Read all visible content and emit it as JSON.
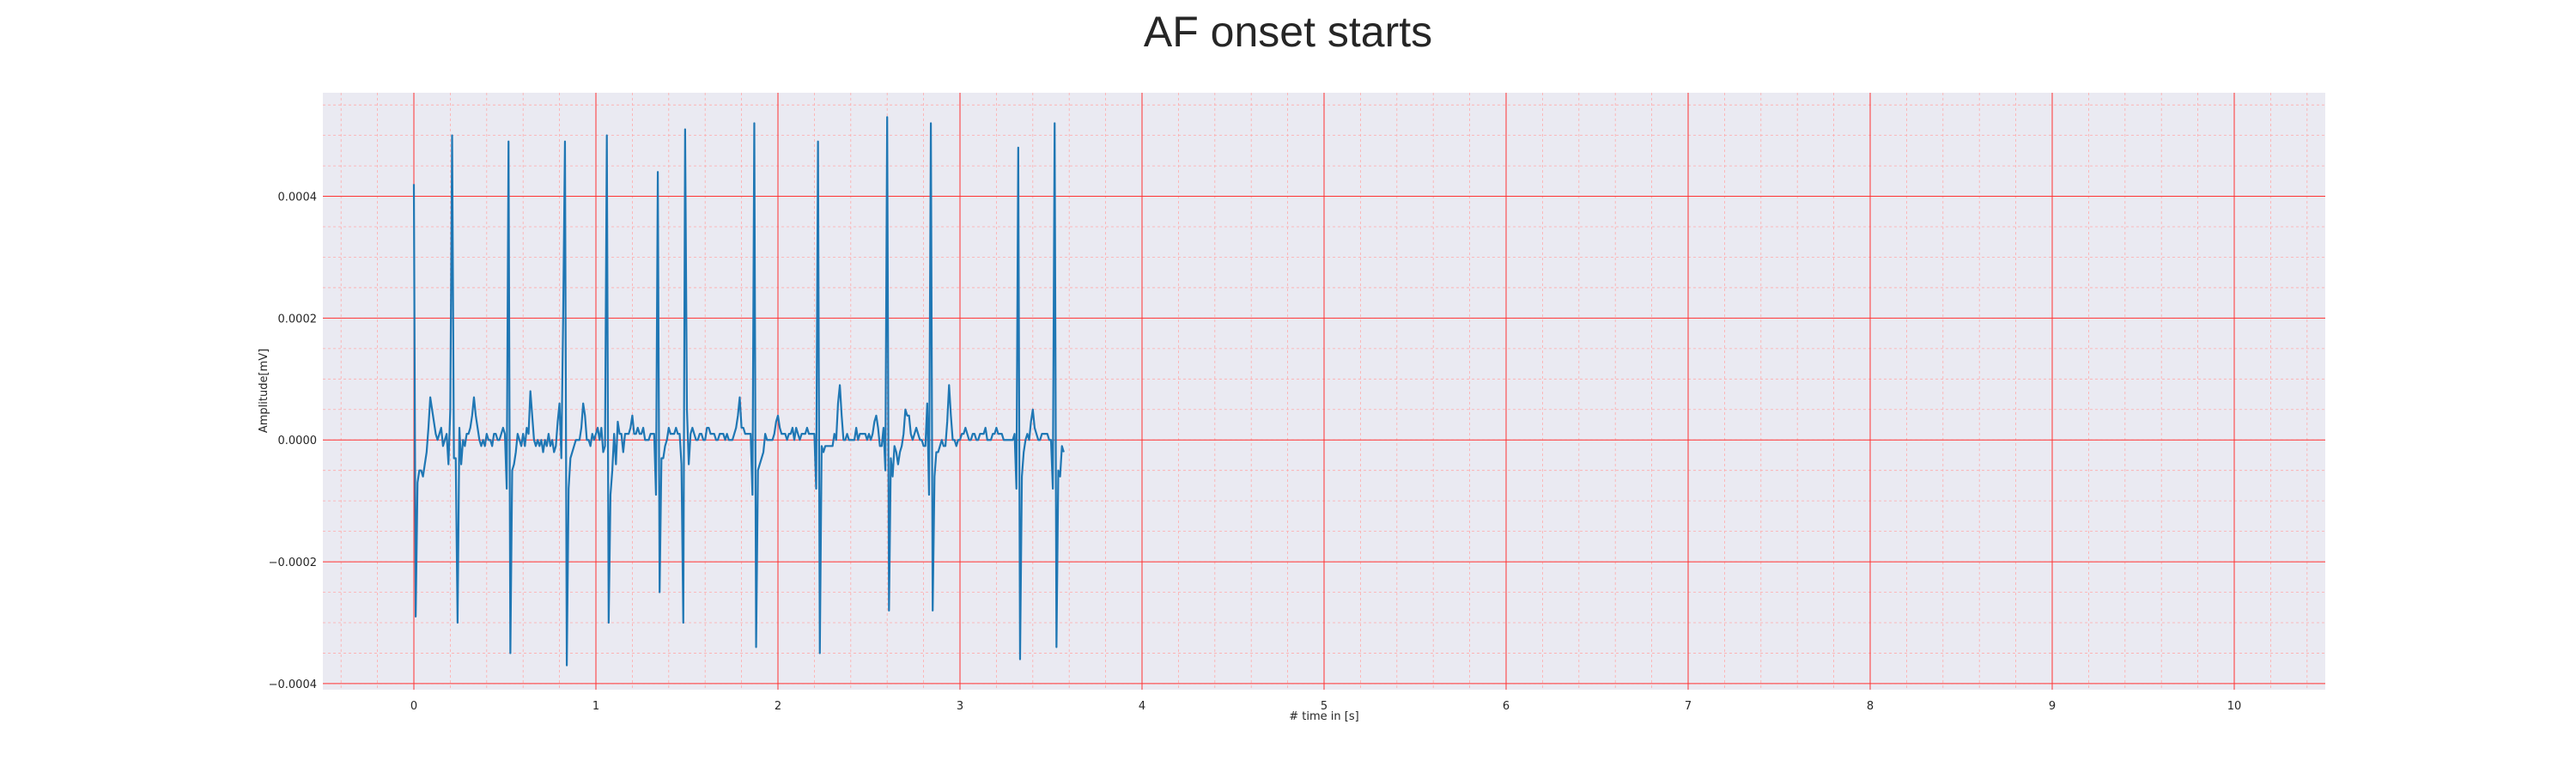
{
  "chart_data": {
    "type": "line",
    "title": "AF onset starts",
    "xlabel": "# time in [s]",
    "ylabel": "Amplitude[mV]",
    "xlim": [
      -0.5,
      10.5
    ],
    "ylim": [
      -0.00041,
      0.00057
    ],
    "x_ticks": [
      0,
      1,
      2,
      3,
      4,
      5,
      6,
      7,
      8,
      9,
      10
    ],
    "x_tick_labels": [
      "0",
      "1",
      "2",
      "3",
      "4",
      "5",
      "6",
      "7",
      "8",
      "9",
      "10"
    ],
    "y_ticks": [
      -0.0004,
      -0.0002,
      0.0,
      0.0002,
      0.0004
    ],
    "y_tick_labels": [
      "−0.0004",
      "−0.0002",
      "0.0000",
      "0.0002",
      "0.0004"
    ],
    "grid": "major and minor",
    "colors": {
      "line": "#1f77b4",
      "plot_background": "#eaeaf2",
      "major_grid": "#ff3333",
      "minor_grid": "#ffaaaa",
      "text": "#262626"
    },
    "series": [
      {
        "sampling_rate_hz": 100,
        "values": [
          0.00042,
          -0.00029,
          -7e-05,
          -5e-05,
          -5e-05,
          -6e-05,
          -4e-05,
          -2e-05,
          2e-05,
          7e-05,
          5e-05,
          3e-05,
          1e-05,
          0,
          1e-05,
          2e-05,
          -1e-05,
          0,
          1e-05,
          -4e-05,
          5e-05,
          0.0005,
          -3e-05,
          -3e-05,
          -0.0003,
          2e-05,
          -4e-05,
          0,
          -1e-05,
          1e-05,
          1e-05,
          2e-05,
          4e-05,
          7e-05,
          4e-05,
          2e-05,
          0,
          -1e-05,
          0,
          -1e-05,
          1e-05,
          0,
          0,
          -1e-05,
          1e-05,
          1e-05,
          0,
          0,
          1e-05,
          2e-05,
          1e-05,
          -8e-05,
          0.00049,
          -0.00035,
          -5e-05,
          -4e-05,
          -2e-05,
          1e-05,
          0,
          -1e-05,
          1e-05,
          -1e-05,
          2e-05,
          1e-05,
          8e-05,
          4e-05,
          0,
          -1e-05,
          0,
          -1e-05,
          0,
          -2e-05,
          0,
          -1e-05,
          1e-05,
          -1e-05,
          0,
          -2e-05,
          -1e-05,
          3e-05,
          6e-05,
          -3e-05,
          0.0002,
          0.00049,
          -0.00037,
          -8e-05,
          -3e-05,
          -2e-05,
          -1e-05,
          0,
          0,
          0,
          2e-05,
          6e-05,
          4e-05,
          0,
          0,
          -1e-05,
          1e-05,
          0,
          1e-05,
          2e-05,
          0,
          2e-05,
          -2e-05,
          -1e-05,
          0.0005,
          -0.0003,
          -9e-05,
          -5e-05,
          1e-05,
          -4e-05,
          3e-05,
          1e-05,
          1e-05,
          -2e-05,
          1e-05,
          1e-05,
          1e-05,
          2e-05,
          4e-05,
          1e-05,
          1e-05,
          2e-05,
          1e-05,
          1e-05,
          2e-05,
          0,
          0,
          0,
          1e-05,
          1e-05,
          1e-05,
          -9e-05,
          0.00044,
          -0.00025,
          -3e-05,
          -3e-05,
          -1e-05,
          0,
          2e-05,
          1e-05,
          1e-05,
          1e-05,
          2e-05,
          1e-05,
          1e-05,
          -4e-05,
          -0.0003,
          0.00051,
          5e-05,
          -4e-05,
          1e-05,
          2e-05,
          1e-05,
          0,
          0,
          1e-05,
          1e-05,
          0,
          0,
          2e-05,
          2e-05,
          1e-05,
          1e-05,
          1e-05,
          0,
          0,
          1e-05,
          1e-05,
          1e-05,
          0,
          1e-05,
          0,
          0,
          0,
          1e-05,
          2e-05,
          4e-05,
          7e-05,
          2e-05,
          2e-05,
          1e-05,
          1e-05,
          1e-05,
          1e-05,
          -9e-05,
          0.00052,
          -0.00034,
          -5e-05,
          -4e-05,
          -3e-05,
          -2e-05,
          1e-05,
          0,
          0,
          0,
          0,
          1e-05,
          3e-05,
          4e-05,
          2e-05,
          1e-05,
          1e-05,
          1e-05,
          0,
          1e-05,
          1e-05,
          2e-05,
          0,
          2e-05,
          1e-05,
          0,
          1e-05,
          1e-05,
          1e-05,
          2e-05,
          1e-05,
          1e-05,
          1e-05,
          1e-05,
          -8e-05,
          0.00049,
          -0.00035,
          -1e-05,
          -2e-05,
          -1e-05,
          -1e-05,
          -1e-05,
          -1e-05,
          -1e-05,
          1e-05,
          0,
          6e-05,
          9e-05,
          4e-05,
          0,
          0,
          1e-05,
          0,
          0,
          0,
          0,
          2e-05,
          0,
          1e-05,
          1e-05,
          1e-05,
          1e-05,
          0,
          1e-05,
          0,
          1e-05,
          3e-05,
          4e-05,
          2e-05,
          -1e-05,
          -1e-05,
          2e-05,
          -5e-05,
          0.00053,
          -0.00028,
          -3e-05,
          -6e-05,
          -1e-05,
          -2e-05,
          -4e-05,
          -2e-05,
          -1e-05,
          1e-05,
          5e-05,
          4e-05,
          4e-05,
          1e-05,
          0,
          1e-05,
          2e-05,
          1e-05,
          0,
          0,
          -1e-05,
          -1e-05,
          6e-05,
          -9e-05,
          0.00052,
          -0.00028,
          -6e-05,
          -2e-05,
          -2e-05,
          -1e-05,
          0,
          -1e-05,
          -1e-05,
          3e-05,
          9e-05,
          4e-05,
          0,
          0,
          -1e-05,
          0,
          0,
          1e-05,
          1e-05,
          2e-05,
          1e-05,
          0,
          0,
          1e-05,
          1e-05,
          0,
          0,
          1e-05,
          1e-05,
          1e-05,
          2e-05,
          0,
          0,
          0,
          1e-05,
          1e-05,
          2e-05,
          1e-05,
          1e-05,
          1e-05,
          0,
          0,
          0,
          0,
          0,
          0,
          1e-05,
          -8e-05,
          0.00048,
          -0.00036,
          -6e-05,
          -2e-05,
          0,
          1e-05,
          0,
          3e-05,
          5e-05,
          2e-05,
          1e-05,
          0,
          0,
          1e-05,
          1e-05,
          1e-05,
          1e-05,
          0,
          0,
          -8e-05,
          0.00052,
          -0.00034,
          -5e-05,
          -6e-05,
          -1e-05,
          -2e-05
        ],
        "note_x_start": 0
      }
    ]
  }
}
